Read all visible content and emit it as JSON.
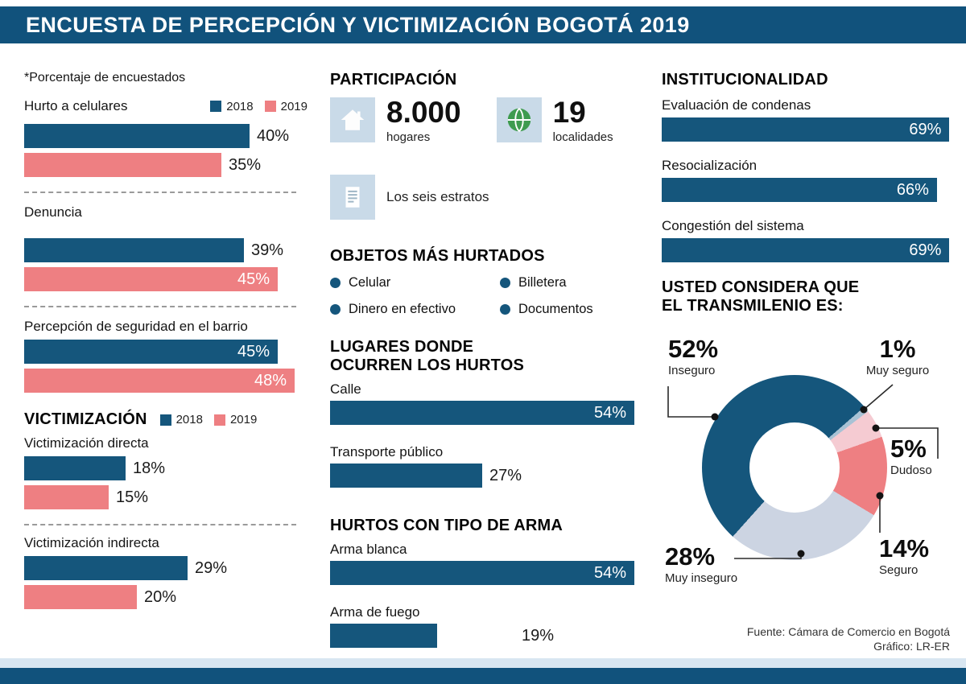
{
  "header": {
    "title": "ENCUESTA DE PERCEPCIÓN Y VICTIMIZACIÓN BOGOTÁ 2019"
  },
  "left": {
    "note": "*Porcentaje de encuestados",
    "legend": {
      "y2018": "2018",
      "y2019": "2019"
    },
    "groups": [
      {
        "label": "Hurto a celulares",
        "bars": [
          {
            "year": "2018",
            "value": 40,
            "label": "40%"
          },
          {
            "year": "2019",
            "value": 35,
            "label": "35%"
          }
        ]
      },
      {
        "label": "Denuncia",
        "bars": [
          {
            "year": "2018",
            "value": 39,
            "label": "39%"
          },
          {
            "year": "2019",
            "value": 45,
            "label": "45%"
          }
        ]
      },
      {
        "label": "Percepción de seguridad en el barrio",
        "bars": [
          {
            "year": "2018",
            "value": 45,
            "label": "45%"
          },
          {
            "year": "2019",
            "value": 48,
            "label": "48%"
          }
        ]
      }
    ],
    "victimizacion": {
      "heading": "VICTIMIZACIÓN",
      "groups": [
        {
          "label": "Victimización directa",
          "bars": [
            {
              "year": "2018",
              "value": 18,
              "label": "18%"
            },
            {
              "year": "2019",
              "value": 15,
              "label": "15%"
            }
          ]
        },
        {
          "label": "Victimización indirecta",
          "bars": [
            {
              "year": "2018",
              "value": 29,
              "label": "29%"
            },
            {
              "year": "2019",
              "value": 20,
              "label": "20%"
            }
          ]
        }
      ]
    }
  },
  "middle": {
    "participacion": {
      "heading": "PARTICIPACIÓN",
      "stats": [
        {
          "icon": "house-icon",
          "value": "8.000",
          "label": "hogares"
        },
        {
          "icon": "globe-icon",
          "value": "19",
          "label": "localidades"
        },
        {
          "icon": "document-icon",
          "value": "",
          "label": "Los seis estratos"
        }
      ]
    },
    "objetos": {
      "heading": "OBJETOS MÁS HURTADOS",
      "items": [
        "Celular",
        "Billetera",
        "Dinero en efectivo",
        "Documentos"
      ]
    },
    "lugares": {
      "heading_line1": "LUGARES DONDE",
      "heading_line2": "OCURREN LOS HURTOS",
      "bars": [
        {
          "label": "Calle",
          "value": 54,
          "pct": "54%"
        },
        {
          "label": "Transporte público",
          "value": 27,
          "pct": "27%"
        }
      ]
    },
    "armas": {
      "heading": "HURTOS CON TIPO DE ARMA",
      "bars": [
        {
          "label": "Arma blanca",
          "value": 54,
          "pct": "54%"
        },
        {
          "label": "Arma de fuego",
          "value": 19,
          "pct": "19%"
        }
      ]
    }
  },
  "right": {
    "institucionalidad": {
      "heading": "INSTITUCIONALIDAD",
      "bars": [
        {
          "label": "Evaluación de condenas",
          "value": 69,
          "pct": "69%"
        },
        {
          "label": "Resocialización",
          "value": 66,
          "pct": "66%"
        },
        {
          "label": "Congestión del sistema",
          "value": 69,
          "pct": "69%"
        }
      ]
    },
    "transmilenio": {
      "heading_line1": "USTED CONSIDERA QUE",
      "heading_line2": "EL TRANSMILENIO ES:",
      "start_angle_deg": 49,
      "segments": [
        {
          "label": "Muy seguro",
          "value": 1,
          "pct": "1%",
          "color": "#A8C2D5"
        },
        {
          "label": "Dudoso",
          "value": 5,
          "pct": "5%",
          "color": "#F5CBD2"
        },
        {
          "label": "Seguro",
          "value": 14,
          "pct": "14%",
          "color": "#EE7F82"
        },
        {
          "label": "Muy inseguro",
          "value": 28,
          "pct": "28%",
          "color": "#CCD4E2"
        },
        {
          "label": "Inseguro",
          "value": 52,
          "pct": "52%",
          "color": "#15567C"
        }
      ]
    }
  },
  "source": {
    "line1": "Fuente: Cámara de Comercio en Bogotá",
    "line2": "Gráfico: LR-ER"
  },
  "chart_data": [
    {
      "id": "percepcion-victimizacion-grouped-bars",
      "type": "bar",
      "title": "*Porcentaje de encuestados",
      "categories": [
        "Hurto a celulares",
        "Denuncia",
        "Percepción de seguridad en el barrio",
        "Victimización directa",
        "Victimización indirecta"
      ],
      "series": [
        {
          "name": "2018",
          "values": [
            40,
            39,
            45,
            18,
            29
          ]
        },
        {
          "name": "2019",
          "values": [
            35,
            45,
            48,
            15,
            20
          ]
        }
      ],
      "unit": "%",
      "legend_position": "top",
      "colors": {
        "2018": "#15567C",
        "2019": "#EE7F82"
      }
    },
    {
      "id": "lugares-hurtos",
      "type": "bar",
      "title": "LUGARES DONDE OCURREN LOS HURTOS",
      "categories": [
        "Calle",
        "Transporte público"
      ],
      "values": [
        54,
        27
      ],
      "unit": "%"
    },
    {
      "id": "hurtos-arma",
      "type": "bar",
      "title": "HURTOS CON TIPO DE ARMA",
      "categories": [
        "Arma blanca",
        "Arma de fuego"
      ],
      "values": [
        54,
        19
      ],
      "unit": "%"
    },
    {
      "id": "institucionalidad",
      "type": "bar",
      "title": "INSTITUCIONALIDAD",
      "categories": [
        "Evaluación de condenas",
        "Resocialización",
        "Congestión del sistema"
      ],
      "values": [
        69,
        66,
        69
      ],
      "unit": "%"
    },
    {
      "id": "transmilenio-donut",
      "type": "pie",
      "title": "USTED CONSIDERA QUE EL TRANSMILENIO ES:",
      "categories": [
        "Inseguro",
        "Muy seguro",
        "Dudoso",
        "Seguro",
        "Muy inseguro"
      ],
      "values": [
        52,
        1,
        5,
        14,
        28
      ],
      "unit": "%"
    },
    {
      "id": "participacion-stats",
      "type": "table",
      "categories": [
        "hogares",
        "localidades",
        "estratos"
      ],
      "values": [
        "8.000",
        "19",
        "Los seis estratos"
      ]
    }
  ]
}
